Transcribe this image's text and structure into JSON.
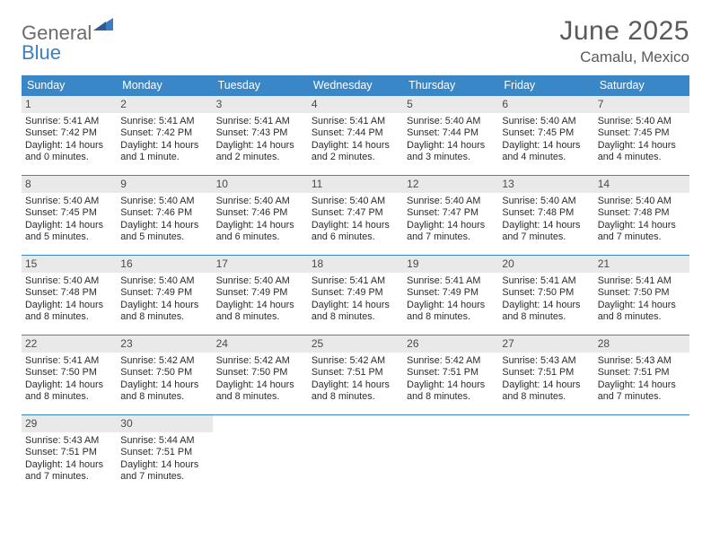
{
  "brand": {
    "part1": "General",
    "part2": "Blue"
  },
  "title": "June 2025",
  "location": "Camalu, Mexico",
  "colors": {
    "header_bar": "#3a87c7",
    "daynum_bg": "#e9e9e9",
    "text": "#2b2b2b",
    "title_text": "#5a5a5a"
  },
  "day_names": [
    "Sunday",
    "Monday",
    "Tuesday",
    "Wednesday",
    "Thursday",
    "Friday",
    "Saturday"
  ],
  "weeks": [
    [
      {
        "n": "1",
        "sr": "5:41 AM",
        "ss": "7:42 PM",
        "dl": "14 hours and 0 minutes."
      },
      {
        "n": "2",
        "sr": "5:41 AM",
        "ss": "7:42 PM",
        "dl": "14 hours and 1 minute."
      },
      {
        "n": "3",
        "sr": "5:41 AM",
        "ss": "7:43 PM",
        "dl": "14 hours and 2 minutes."
      },
      {
        "n": "4",
        "sr": "5:41 AM",
        "ss": "7:44 PM",
        "dl": "14 hours and 2 minutes."
      },
      {
        "n": "5",
        "sr": "5:40 AM",
        "ss": "7:44 PM",
        "dl": "14 hours and 3 minutes."
      },
      {
        "n": "6",
        "sr": "5:40 AM",
        "ss": "7:45 PM",
        "dl": "14 hours and 4 minutes."
      },
      {
        "n": "7",
        "sr": "5:40 AM",
        "ss": "7:45 PM",
        "dl": "14 hours and 4 minutes."
      }
    ],
    [
      {
        "n": "8",
        "sr": "5:40 AM",
        "ss": "7:45 PM",
        "dl": "14 hours and 5 minutes."
      },
      {
        "n": "9",
        "sr": "5:40 AM",
        "ss": "7:46 PM",
        "dl": "14 hours and 5 minutes."
      },
      {
        "n": "10",
        "sr": "5:40 AM",
        "ss": "7:46 PM",
        "dl": "14 hours and 6 minutes."
      },
      {
        "n": "11",
        "sr": "5:40 AM",
        "ss": "7:47 PM",
        "dl": "14 hours and 6 minutes."
      },
      {
        "n": "12",
        "sr": "5:40 AM",
        "ss": "7:47 PM",
        "dl": "14 hours and 7 minutes."
      },
      {
        "n": "13",
        "sr": "5:40 AM",
        "ss": "7:48 PM",
        "dl": "14 hours and 7 minutes."
      },
      {
        "n": "14",
        "sr": "5:40 AM",
        "ss": "7:48 PM",
        "dl": "14 hours and 7 minutes."
      }
    ],
    [
      {
        "n": "15",
        "sr": "5:40 AM",
        "ss": "7:48 PM",
        "dl": "14 hours and 8 minutes."
      },
      {
        "n": "16",
        "sr": "5:40 AM",
        "ss": "7:49 PM",
        "dl": "14 hours and 8 minutes."
      },
      {
        "n": "17",
        "sr": "5:40 AM",
        "ss": "7:49 PM",
        "dl": "14 hours and 8 minutes."
      },
      {
        "n": "18",
        "sr": "5:41 AM",
        "ss": "7:49 PM",
        "dl": "14 hours and 8 minutes."
      },
      {
        "n": "19",
        "sr": "5:41 AM",
        "ss": "7:49 PM",
        "dl": "14 hours and 8 minutes."
      },
      {
        "n": "20",
        "sr": "5:41 AM",
        "ss": "7:50 PM",
        "dl": "14 hours and 8 minutes."
      },
      {
        "n": "21",
        "sr": "5:41 AM",
        "ss": "7:50 PM",
        "dl": "14 hours and 8 minutes."
      }
    ],
    [
      {
        "n": "22",
        "sr": "5:41 AM",
        "ss": "7:50 PM",
        "dl": "14 hours and 8 minutes."
      },
      {
        "n": "23",
        "sr": "5:42 AM",
        "ss": "7:50 PM",
        "dl": "14 hours and 8 minutes."
      },
      {
        "n": "24",
        "sr": "5:42 AM",
        "ss": "7:50 PM",
        "dl": "14 hours and 8 minutes."
      },
      {
        "n": "25",
        "sr": "5:42 AM",
        "ss": "7:51 PM",
        "dl": "14 hours and 8 minutes."
      },
      {
        "n": "26",
        "sr": "5:42 AM",
        "ss": "7:51 PM",
        "dl": "14 hours and 8 minutes."
      },
      {
        "n": "27",
        "sr": "5:43 AM",
        "ss": "7:51 PM",
        "dl": "14 hours and 8 minutes."
      },
      {
        "n": "28",
        "sr": "5:43 AM",
        "ss": "7:51 PM",
        "dl": "14 hours and 7 minutes."
      }
    ],
    [
      {
        "n": "29",
        "sr": "5:43 AM",
        "ss": "7:51 PM",
        "dl": "14 hours and 7 minutes."
      },
      {
        "n": "30",
        "sr": "5:44 AM",
        "ss": "7:51 PM",
        "dl": "14 hours and 7 minutes."
      },
      null,
      null,
      null,
      null,
      null
    ]
  ],
  "labels": {
    "sunrise": "Sunrise: ",
    "sunset": "Sunset: ",
    "daylight": "Daylight: "
  }
}
